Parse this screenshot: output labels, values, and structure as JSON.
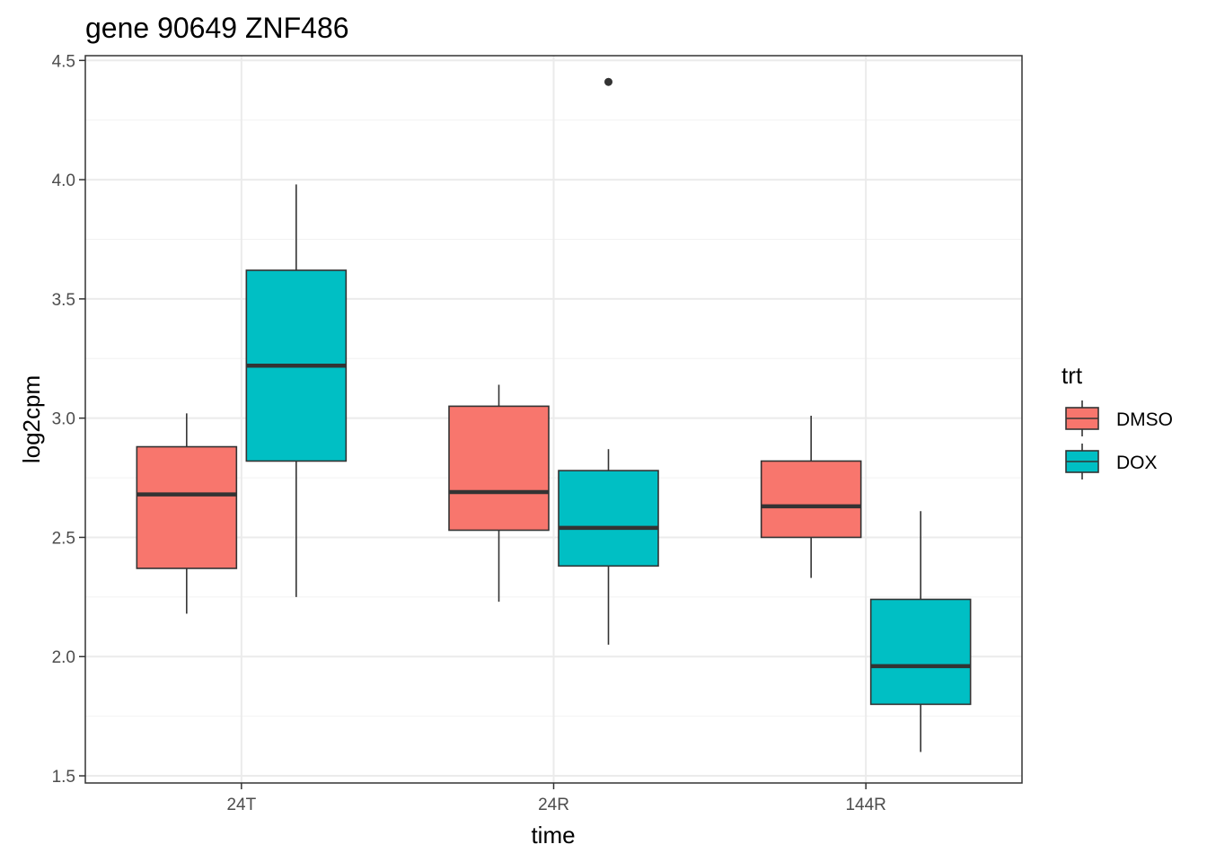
{
  "chart_data": {
    "type": "box",
    "title": "gene 90649 ZNF486",
    "xlabel": "time",
    "ylabel": "log2cpm",
    "categories": [
      "24T",
      "24R",
      "144R"
    ],
    "ylim": [
      1.47,
      4.52
    ],
    "yticks": [
      1.5,
      2.0,
      2.5,
      3.0,
      3.5,
      4.0,
      4.5
    ],
    "ytick_labels": [
      "1.5",
      "2.0",
      "2.5",
      "3.0",
      "3.5",
      "4.0",
      "4.5"
    ],
    "grid": true,
    "legend": {
      "title": "trt",
      "position": "right"
    },
    "series": [
      {
        "name": "DMSO",
        "color": "#F8766D",
        "boxes": [
          {
            "category": "24T",
            "lower_whisker": 2.18,
            "q1": 2.37,
            "median": 2.68,
            "q3": 2.88,
            "upper_whisker": 3.02,
            "outliers": []
          },
          {
            "category": "24R",
            "lower_whisker": 2.23,
            "q1": 2.53,
            "median": 2.69,
            "q3": 3.05,
            "upper_whisker": 3.14,
            "outliers": []
          },
          {
            "category": "144R",
            "lower_whisker": 2.33,
            "q1": 2.5,
            "median": 2.63,
            "q3": 2.82,
            "upper_whisker": 3.01,
            "outliers": []
          }
        ]
      },
      {
        "name": "DOX",
        "color": "#00BFC4",
        "boxes": [
          {
            "category": "24T",
            "lower_whisker": 2.25,
            "q1": 2.82,
            "median": 3.22,
            "q3": 3.62,
            "upper_whisker": 3.98,
            "outliers": []
          },
          {
            "category": "24R",
            "lower_whisker": 2.05,
            "q1": 2.38,
            "median": 2.54,
            "q3": 2.78,
            "upper_whisker": 2.87,
            "outliers": [
              4.41
            ]
          },
          {
            "category": "144R",
            "lower_whisker": 1.6,
            "q1": 1.8,
            "median": 1.96,
            "q3": 2.24,
            "upper_whisker": 2.61,
            "outliers": []
          }
        ]
      }
    ]
  }
}
